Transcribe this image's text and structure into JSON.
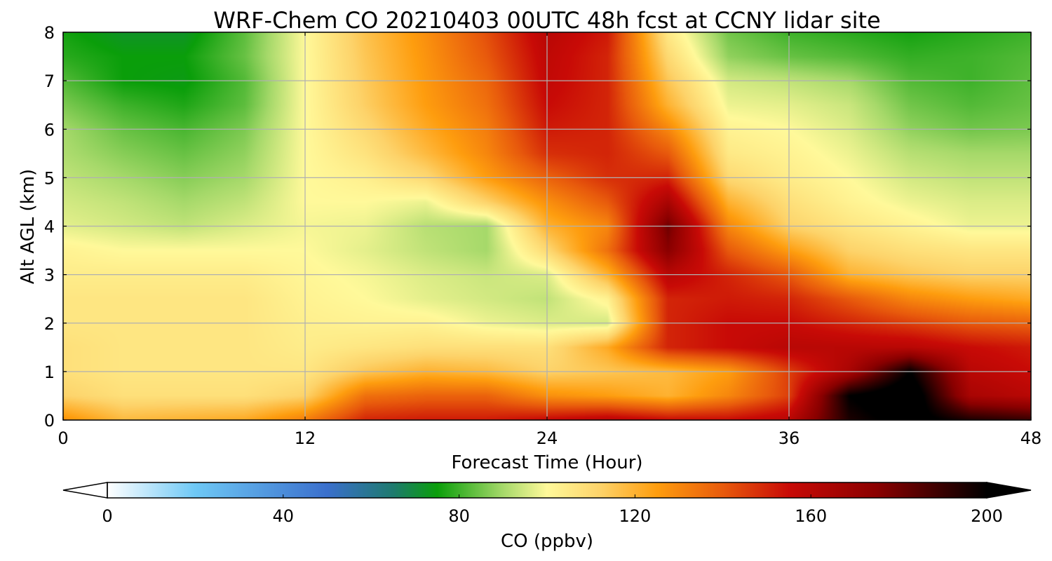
{
  "chart_data": {
    "type": "heatmap",
    "title": "WRF-Chem CO  20210403 00UTC 48h fcst at CCNY lidar site",
    "xlabel": "Forecast Time (Hour)",
    "ylabel": "Alt AGL (km)",
    "xlim": [
      0,
      48
    ],
    "ylim": [
      0,
      8
    ],
    "xticks": [
      0,
      12,
      24,
      36,
      48
    ],
    "yticks": [
      0,
      1,
      2,
      3,
      4,
      5,
      6,
      7,
      8
    ],
    "grid": true,
    "x": [
      0,
      3,
      6,
      9,
      12,
      15,
      18,
      21,
      24,
      27,
      30,
      33,
      36,
      39,
      42,
      45,
      48
    ],
    "y": [
      0,
      0.5,
      1,
      1.5,
      2,
      2.5,
      3,
      3.5,
      4,
      4.5,
      5,
      5.5,
      6,
      6.5,
      7,
      7.5,
      8
    ],
    "z": [
      [
        128,
        118,
        120,
        122,
        132,
        150,
        152,
        152,
        156,
        160,
        155,
        155,
        160,
        195,
        205,
        195,
        190
      ],
      [
        112,
        108,
        108,
        108,
        112,
        135,
        138,
        138,
        128,
        125,
        120,
        130,
        145,
        200,
        210,
        165,
        160
      ],
      [
        108,
        106,
        106,
        106,
        106,
        115,
        120,
        118,
        112,
        115,
        118,
        125,
        145,
        165,
        200,
        160,
        155
      ],
      [
        108,
        106,
        106,
        106,
        104,
        106,
        108,
        108,
        108,
        122,
        150,
        155,
        160,
        160,
        160,
        155,
        152
      ],
      [
        106,
        106,
        106,
        106,
        103,
        102,
        102,
        98,
        96,
        95,
        150,
        155,
        155,
        150,
        145,
        140,
        138
      ],
      [
        106,
        106,
        106,
        106,
        102,
        100,
        97,
        95,
        93,
        102,
        150,
        152,
        150,
        140,
        130,
        125,
        122
      ],
      [
        104,
        104,
        104,
        104,
        101,
        99,
        96,
        94,
        96,
        120,
        160,
        150,
        140,
        120,
        115,
        112,
        112
      ],
      [
        102,
        100,
        100,
        100,
        100,
        97,
        93,
        90,
        110,
        135,
        175,
        140,
        125,
        112,
        108,
        106,
        106
      ],
      [
        97,
        95,
        93,
        96,
        99,
        98,
        92,
        90,
        120,
        130,
        180,
        130,
        112,
        106,
        102,
        98,
        98
      ],
      [
        95,
        93,
        90,
        93,
        100,
        100,
        98,
        112,
        128,
        140,
        165,
        120,
        108,
        102,
        98,
        96,
        96
      ],
      [
        93,
        90,
        87,
        90,
        100,
        103,
        110,
        125,
        138,
        148,
        150,
        110,
        104,
        100,
        95,
        93,
        93
      ],
      [
        91,
        87,
        84,
        88,
        100,
        107,
        118,
        130,
        148,
        150,
        140,
        105,
        102,
        98,
        92,
        90,
        90
      ],
      [
        90,
        84,
        81,
        86,
        100,
        110,
        122,
        132,
        152,
        150,
        130,
        102,
        100,
        96,
        88,
        85,
        86
      ],
      [
        86,
        80,
        77,
        83,
        100,
        113,
        125,
        135,
        155,
        150,
        120,
        98,
        97,
        94,
        85,
        82,
        84
      ],
      [
        82,
        75,
        74,
        82,
        100,
        114,
        126,
        137,
        157,
        150,
        115,
        95,
        93,
        90,
        82,
        80,
        83
      ],
      [
        78,
        75,
        75,
        84,
        100,
        115,
        127,
        140,
        158,
        150,
        110,
        88,
        84,
        82,
        79,
        80,
        82
      ],
      [
        76,
        72,
        72,
        83,
        100,
        116,
        128,
        142,
        160,
        152,
        105,
        85,
        80,
        78,
        76,
        78,
        80
      ]
    ],
    "colorbar": {
      "label": "CO  (ppbv)",
      "min": 0,
      "max": 200,
      "ticks": [
        0,
        40,
        80,
        120,
        160,
        200
      ],
      "extend": "both",
      "stops": [
        {
          "v": 0,
          "c": "#ffffff"
        },
        {
          "v": 20,
          "c": "#6ec8f5"
        },
        {
          "v": 50,
          "c": "#3a6fcc"
        },
        {
          "v": 65,
          "c": "#1e7a6e"
        },
        {
          "v": 75,
          "c": "#0a9e0a"
        },
        {
          "v": 90,
          "c": "#a6d96a"
        },
        {
          "v": 100,
          "c": "#fff99a"
        },
        {
          "v": 112,
          "c": "#fdd36a"
        },
        {
          "v": 125,
          "c": "#fe9d0e"
        },
        {
          "v": 140,
          "c": "#e85a0c"
        },
        {
          "v": 155,
          "c": "#c80a06"
        },
        {
          "v": 175,
          "c": "#8a0000"
        },
        {
          "v": 200,
          "c": "#000000"
        }
      ]
    }
  }
}
